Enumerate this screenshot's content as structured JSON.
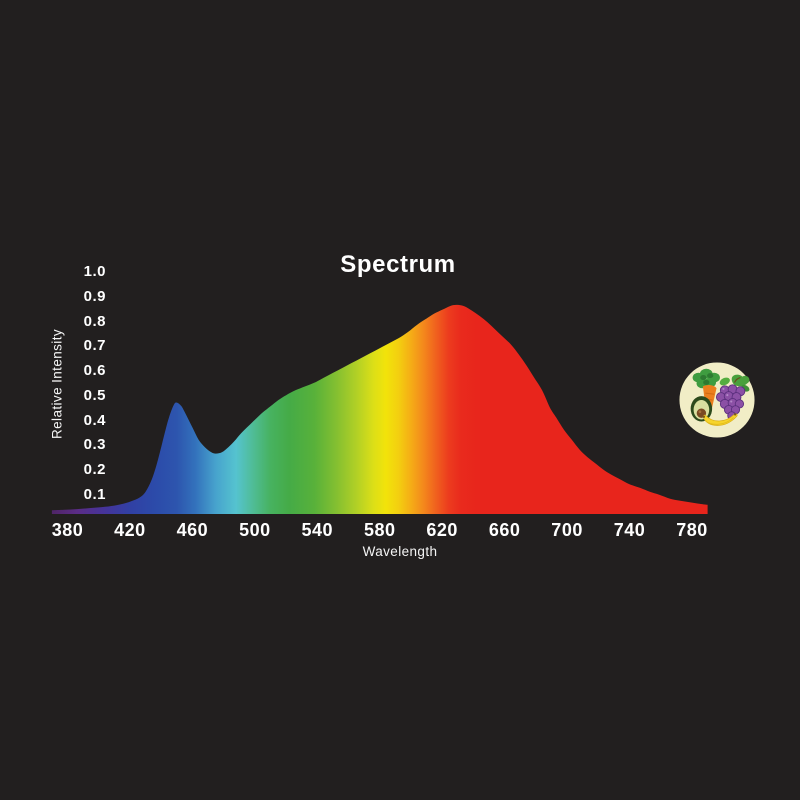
{
  "title": "Spectrum",
  "axes": {
    "y_title": "Relative Intensity",
    "x_title": "Wavelength"
  },
  "colors": {
    "background": "#221f1f",
    "text": "#ffffff",
    "badge_background": "#f1edc6"
  },
  "badge": {
    "icons": [
      "carrot-icon",
      "grapes-icon",
      "avocado-icon",
      "banana-icon"
    ]
  },
  "chart_data": {
    "type": "area",
    "title": "Spectrum",
    "xlabel": "Wavelength",
    "ylabel": "Relative Intensity",
    "xlim": [
      370,
      790
    ],
    "ylim": [
      0,
      1.0
    ],
    "grid": false,
    "legend": false,
    "x_ticks": [
      380,
      420,
      460,
      500,
      540,
      580,
      620,
      660,
      700,
      740,
      780
    ],
    "y_ticks": [
      1.0,
      0.9,
      0.8,
      0.7,
      0.6,
      0.5,
      0.4,
      0.3,
      0.2,
      0.1
    ],
    "series": [
      {
        "name": "spectrum",
        "points": [
          [
            370,
            0.015
          ],
          [
            378,
            0.017
          ],
          [
            386,
            0.02
          ],
          [
            394,
            0.024
          ],
          [
            402,
            0.028
          ],
          [
            410,
            0.034
          ],
          [
            416,
            0.042
          ],
          [
            421,
            0.052
          ],
          [
            426,
            0.066
          ],
          [
            430,
            0.09
          ],
          [
            434,
            0.14
          ],
          [
            438,
            0.22
          ],
          [
            442,
            0.32
          ],
          [
            445,
            0.39
          ],
          [
            448,
            0.44
          ],
          [
            450,
            0.45
          ],
          [
            453,
            0.435
          ],
          [
            456,
            0.4
          ],
          [
            460,
            0.35
          ],
          [
            464,
            0.3
          ],
          [
            468,
            0.27
          ],
          [
            472,
            0.25
          ],
          [
            475,
            0.244
          ],
          [
            479,
            0.25
          ],
          [
            483,
            0.27
          ],
          [
            487,
            0.295
          ],
          [
            491,
            0.325
          ],
          [
            495,
            0.35
          ],
          [
            500,
            0.38
          ],
          [
            505,
            0.41
          ],
          [
            510,
            0.435
          ],
          [
            515,
            0.46
          ],
          [
            520,
            0.48
          ],
          [
            526,
            0.5
          ],
          [
            532,
            0.515
          ],
          [
            538,
            0.53
          ],
          [
            544,
            0.55
          ],
          [
            550,
            0.57
          ],
          [
            556,
            0.59
          ],
          [
            562,
            0.61
          ],
          [
            568,
            0.63
          ],
          [
            574,
            0.65
          ],
          [
            580,
            0.67
          ],
          [
            586,
            0.69
          ],
          [
            592,
            0.71
          ],
          [
            598,
            0.735
          ],
          [
            604,
            0.765
          ],
          [
            610,
            0.79
          ],
          [
            615,
            0.81
          ],
          [
            620,
            0.825
          ],
          [
            625,
            0.84
          ],
          [
            629,
            0.845
          ],
          [
            634,
            0.84
          ],
          [
            639,
            0.822
          ],
          [
            644,
            0.8
          ],
          [
            649,
            0.775
          ],
          [
            654,
            0.745
          ],
          [
            659,
            0.715
          ],
          [
            664,
            0.685
          ],
          [
            669,
            0.645
          ],
          [
            674,
            0.6
          ],
          [
            679,
            0.55
          ],
          [
            684,
            0.5
          ],
          [
            689,
            0.43
          ],
          [
            693,
            0.39
          ],
          [
            698,
            0.34
          ],
          [
            703,
            0.3
          ],
          [
            708,
            0.26
          ],
          [
            713,
            0.23
          ],
          [
            718,
            0.205
          ],
          [
            723,
            0.18
          ],
          [
            728,
            0.16
          ],
          [
            734,
            0.14
          ],
          [
            740,
            0.12
          ],
          [
            747,
            0.105
          ],
          [
            753,
            0.09
          ],
          [
            759,
            0.078
          ],
          [
            766,
            0.062
          ],
          [
            772,
            0.054
          ],
          [
            778,
            0.048
          ],
          [
            784,
            0.042
          ],
          [
            790,
            0.037
          ]
        ]
      }
    ],
    "gradient_stops": [
      {
        "nm": 370,
        "color": "#4f2566"
      },
      {
        "nm": 386,
        "color": "#5b2c86"
      },
      {
        "nm": 405,
        "color": "#44349b"
      },
      {
        "nm": 420,
        "color": "#3140a4"
      },
      {
        "nm": 435,
        "color": "#2c4aa9"
      },
      {
        "nm": 450,
        "color": "#2d55ae"
      },
      {
        "nm": 462,
        "color": "#3372bc"
      },
      {
        "nm": 475,
        "color": "#47a3cd"
      },
      {
        "nm": 488,
        "color": "#55c3cf"
      },
      {
        "nm": 498,
        "color": "#50bd9a"
      },
      {
        "nm": 510,
        "color": "#47b260"
      },
      {
        "nm": 522,
        "color": "#45ab47"
      },
      {
        "nm": 538,
        "color": "#58b13a"
      },
      {
        "nm": 552,
        "color": "#83bf31"
      },
      {
        "nm": 565,
        "color": "#b1d026"
      },
      {
        "nm": 576,
        "color": "#dcdf17"
      },
      {
        "nm": 584,
        "color": "#f2e30a"
      },
      {
        "nm": 592,
        "color": "#f3cf10"
      },
      {
        "nm": 600,
        "color": "#f5ad16"
      },
      {
        "nm": 608,
        "color": "#f4881c"
      },
      {
        "nm": 616,
        "color": "#f0611e"
      },
      {
        "nm": 624,
        "color": "#ec3c1e"
      },
      {
        "nm": 632,
        "color": "#e92a1d"
      },
      {
        "nm": 645,
        "color": "#e8251c"
      },
      {
        "nm": 790,
        "color": "#e8251c"
      }
    ]
  }
}
